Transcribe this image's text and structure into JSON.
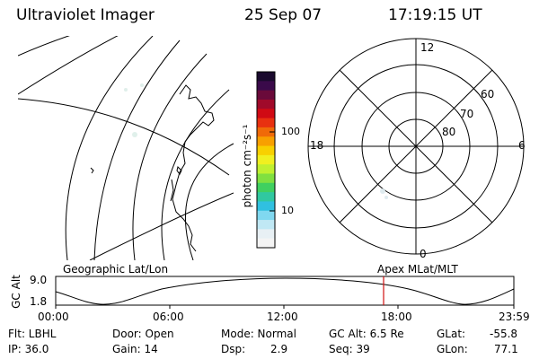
{
  "header": {
    "instrument": "Ultraviolet Imager",
    "date": "25 Sep 07",
    "time": "17:19:15 UT"
  },
  "geo_panel": {
    "label": "Geographic Lat/Lon"
  },
  "colorbar": {
    "unit_label": "photon cm⁻²s⁻¹",
    "ticks": [
      "100",
      "10"
    ],
    "colors": [
      "#1a0a2e",
      "#3a0a4a",
      "#6a0a3a",
      "#a00a2a",
      "#d00a14",
      "#e83010",
      "#f06a08",
      "#f8a000",
      "#f8d000",
      "#f0f020",
      "#c0f030",
      "#80e040",
      "#40d060",
      "#30c8a0",
      "#30c0e0",
      "#80d8f0",
      "#c0e8f4",
      "#e8f0f4",
      "#f4f4f4"
    ]
  },
  "polar_panel": {
    "label": "Apex MLat/MLT",
    "mlt_labels": {
      "top": "12",
      "bottom": "0",
      "left": "18",
      "right": "6"
    },
    "lat_labels": [
      "60",
      "70",
      "80"
    ]
  },
  "timeline": {
    "ylabel": "GC Alt",
    "y_ticks": [
      "9.0",
      "1.8"
    ],
    "x_ticks": [
      "00:00",
      "06:00",
      "12:00",
      "18:00",
      "23:59"
    ],
    "marker_time": "17:19"
  },
  "info": {
    "filter_label": "Flt: LBHL",
    "ip_label": "IP: 36.0",
    "door_label": "Door: Open",
    "gain_label": "Gain: 14",
    "mode_label": "Mode: Normal",
    "dsp_label": "Dsp:",
    "dsp_value": "2.9",
    "gcalt_label": "GC Alt: 6.5 Re",
    "seq_label": "Seq: 39",
    "glat_label": "GLat:",
    "glat_value": "-55.8",
    "glon_label": "GLon:",
    "glon_value": "77.1"
  },
  "colors": {
    "marker": "#d01010",
    "ink": "#000000"
  }
}
